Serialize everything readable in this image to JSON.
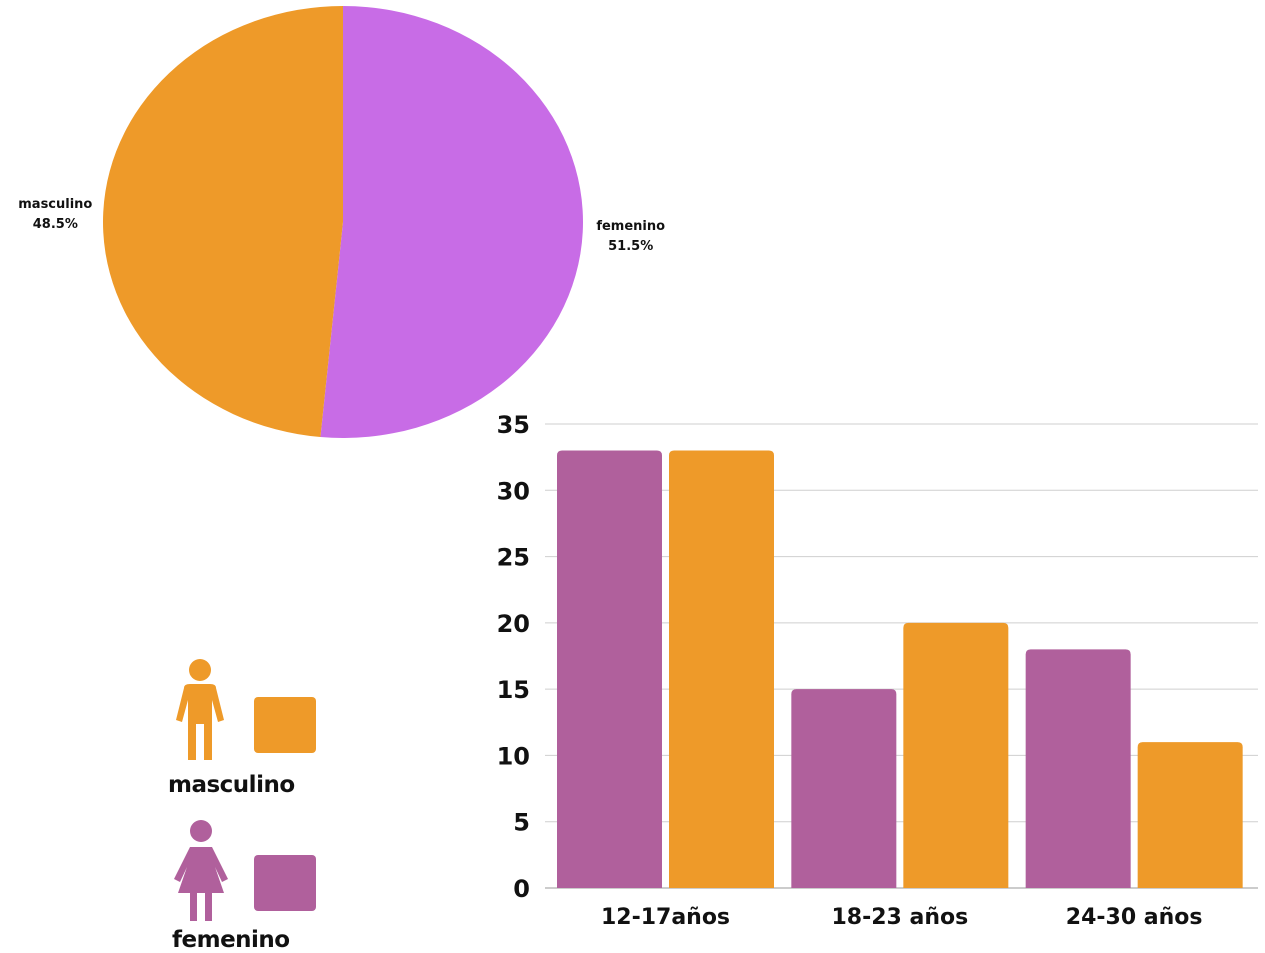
{
  "chart_data": [
    {
      "type": "pie",
      "slices": [
        {
          "label": "femenino",
          "value": 51.5,
          "display": "51.5%",
          "color": "#c86ce6"
        },
        {
          "label": "masculino",
          "value": 48.5,
          "display": "48.5%",
          "color": "#ee9a29"
        }
      ]
    },
    {
      "type": "bar",
      "categories": [
        "12-17años",
        "18-23 años",
        "24-30 años"
      ],
      "series": [
        {
          "name": "femenino",
          "values": [
            33,
            15,
            18
          ],
          "color": "#b0609c"
        },
        {
          "name": "masculino",
          "values": [
            33,
            20,
            11
          ],
          "color": "#ee9a29"
        }
      ],
      "yticks": [
        0,
        5,
        10,
        15,
        20,
        25,
        30,
        35
      ],
      "ylim": [
        0,
        35
      ],
      "grid": true
    }
  ],
  "legend": {
    "items": [
      {
        "label": "masculino",
        "icon": "male-person-icon",
        "color": "#ee9a29"
      },
      {
        "label": "femenino",
        "icon": "female-person-icon",
        "color": "#b0609c"
      }
    ]
  }
}
